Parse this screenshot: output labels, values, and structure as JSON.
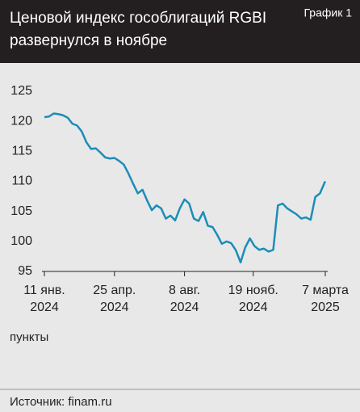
{
  "chart_data": {
    "type": "line",
    "title": [
      "Ценовой индекс гособлигаций RGBI",
      "развернулся в ноябре"
    ],
    "label": "График 1",
    "y_axis_label": "пункты",
    "source": "Источник: finam.ru",
    "x": [
      "2024-01-11",
      "2024-01-18",
      "2024-01-25",
      "2024-02-01",
      "2024-02-08",
      "2024-02-15",
      "2024-02-22",
      "2024-02-29",
      "2024-03-07",
      "2024-03-14",
      "2024-03-21",
      "2024-03-28",
      "2024-04-04",
      "2024-04-11",
      "2024-04-18",
      "2024-04-25",
      "2024-05-02",
      "2024-05-09",
      "2024-05-16",
      "2024-05-23",
      "2024-05-30",
      "2024-06-06",
      "2024-06-13",
      "2024-06-20",
      "2024-06-27",
      "2024-07-04",
      "2024-07-11",
      "2024-07-18",
      "2024-07-25",
      "2024-08-01",
      "2024-08-08",
      "2024-08-15",
      "2024-08-22",
      "2024-08-29",
      "2024-09-05",
      "2024-09-12",
      "2024-09-19",
      "2024-09-26",
      "2024-10-03",
      "2024-10-10",
      "2024-10-17",
      "2024-10-24",
      "2024-10-31",
      "2024-11-07",
      "2024-11-14",
      "2024-11-21",
      "2024-11-28",
      "2024-12-05",
      "2024-12-12",
      "2024-12-19",
      "2024-12-26",
      "2025-01-02",
      "2025-01-09",
      "2025-01-16",
      "2025-01-23",
      "2025-01-30",
      "2025-02-06",
      "2025-02-13",
      "2025-02-20",
      "2025-02-27",
      "2025-03-06",
      "2025-03-07"
    ],
    "series": [
      {
        "name": "RGBI",
        "color": "#1b8db8",
        "values": [
          120.7,
          120.8,
          121.3,
          121.2,
          121.0,
          120.6,
          119.6,
          119.3,
          118.3,
          116.5,
          115.4,
          115.5,
          114.8,
          114.0,
          113.8,
          113.9,
          113.4,
          112.8,
          111.3,
          109.6,
          108.0,
          108.6,
          106.8,
          105.2,
          106.0,
          105.5,
          103.8,
          104.3,
          103.5,
          105.5,
          107.0,
          106.3,
          103.8,
          103.4,
          104.9,
          102.6,
          102.4,
          101.1,
          99.6,
          100.0,
          99.7,
          98.5,
          96.5,
          99.0,
          100.5,
          99.2,
          98.6,
          98.8,
          98.3,
          98.6,
          106.0,
          106.3,
          105.5,
          105.0,
          104.5,
          103.8,
          104.0,
          103.6,
          107.4,
          108.0,
          109.8,
          110.0
        ]
      }
    ],
    "xlim": [
      "2024-01-11",
      "2025-03-07"
    ],
    "xticks": [
      {
        "value": "2024-01-11",
        "label": [
          "11 янв.",
          "2024"
        ]
      },
      {
        "value": "2024-04-25",
        "label": [
          "25 апр.",
          "2024"
        ]
      },
      {
        "value": "2024-08-08",
        "label": [
          "8 авг.",
          "2024"
        ]
      },
      {
        "value": "2024-11-19",
        "label": [
          "19 нояб.",
          "2024"
        ]
      },
      {
        "value": "2025-03-07",
        "label": [
          "7 марта",
          "2025"
        ]
      }
    ],
    "ylim": [
      95,
      125
    ],
    "yticks": [
      95,
      100,
      105,
      110,
      115,
      120,
      125
    ],
    "grid": false
  }
}
